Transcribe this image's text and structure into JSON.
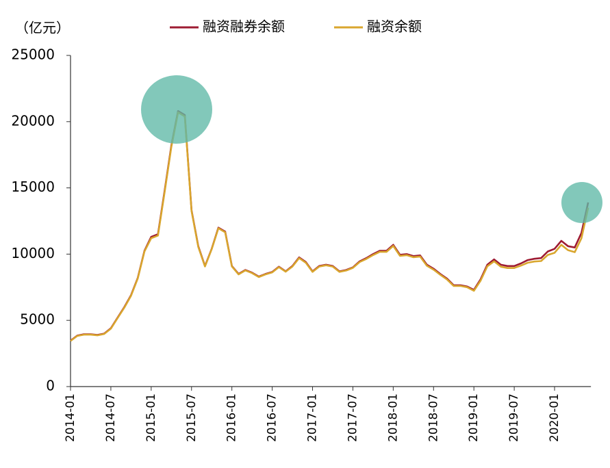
{
  "chart_data": {
    "type": "line",
    "unit_label": "（亿元）",
    "categories": [
      "2014-01",
      null,
      null,
      null,
      null,
      null,
      "2014-07",
      null,
      null,
      null,
      null,
      null,
      "2015-01",
      null,
      null,
      null,
      null,
      null,
      "2015-07",
      null,
      null,
      null,
      null,
      null,
      "2016-01",
      null,
      null,
      null,
      null,
      null,
      "2016-07",
      null,
      null,
      null,
      null,
      null,
      "2017-01",
      null,
      null,
      null,
      null,
      null,
      "2017-07",
      null,
      null,
      null,
      null,
      null,
      "2018-01",
      null,
      null,
      null,
      null,
      null,
      "2018-07",
      null,
      null,
      null,
      null,
      null,
      "2019-01",
      null,
      null,
      null,
      null,
      null,
      "2019-07",
      null,
      null,
      null,
      null,
      null,
      "2020-01",
      null,
      null,
      null,
      null,
      null
    ],
    "series": [
      {
        "name": "融资融券余额",
        "color": "#9e1b32",
        "values": [
          3465,
          3850,
          3950,
          3950,
          3900,
          4000,
          4400,
          5200,
          6000,
          6900,
          8200,
          10250,
          11300,
          11500,
          14800,
          18200,
          20800,
          20500,
          13300,
          10600,
          9100,
          10400,
          12000,
          11700,
          9100,
          8500,
          8800,
          8600,
          8300,
          8500,
          8650,
          9050,
          8700,
          9100,
          9750,
          9400,
          8700,
          9100,
          9200,
          9100,
          8700,
          8800,
          9000,
          9450,
          9700,
          10000,
          10250,
          10250,
          10700,
          9950,
          10000,
          9850,
          9900,
          9200,
          8900,
          8500,
          8150,
          7650,
          7650,
          7550,
          7300,
          8100,
          9200,
          9600,
          9200,
          9100,
          9100,
          9300,
          9550,
          9650,
          9700,
          10200,
          10400,
          11000,
          10600,
          10500,
          11600,
          13900
        ]
      },
      {
        "name": "融资余额",
        "color": "#d9a62e",
        "values": [
          3440,
          3820,
          3920,
          3920,
          3870,
          3970,
          4370,
          5170,
          5960,
          6860,
          8160,
          10200,
          11200,
          11400,
          14700,
          18100,
          20700,
          20400,
          13250,
          10550,
          9070,
          10370,
          11950,
          11650,
          9070,
          8470,
          8770,
          8570,
          8270,
          8470,
          8620,
          9020,
          8670,
          9060,
          9700,
          9350,
          8660,
          9060,
          9160,
          9060,
          8660,
          8760,
          8960,
          9400,
          9640,
          9930,
          10170,
          10170,
          10620,
          9870,
          9920,
          9770,
          9820,
          9120,
          8830,
          8440,
          8090,
          7600,
          7600,
          7500,
          7230,
          8000,
          9080,
          9460,
          9050,
          8950,
          8950,
          9130,
          9350,
          9440,
          9480,
          9940,
          10100,
          10700,
          10300,
          10150,
          11200,
          13500
        ]
      }
    ],
    "ylim": [
      0,
      25000
    ],
    "yticks": [
      0,
      5000,
      10000,
      15000,
      20000,
      25000
    ],
    "grid": false
  }
}
